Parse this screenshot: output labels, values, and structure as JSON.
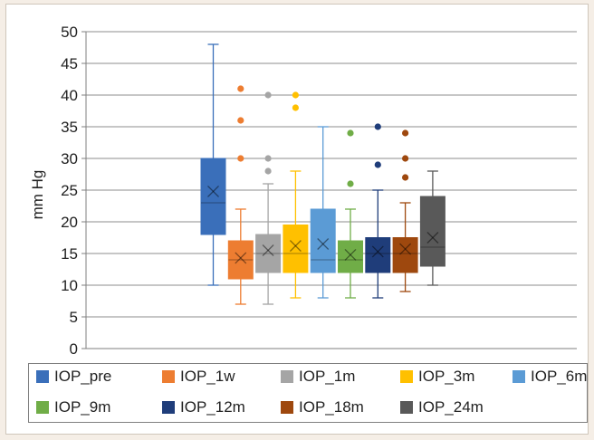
{
  "chart_data": {
    "type": "box",
    "title": "",
    "xlabel": "",
    "ylabel": "mm Hg",
    "ylim": [
      0,
      50
    ],
    "yticks": [
      0,
      5,
      10,
      15,
      20,
      25,
      30,
      35,
      40,
      45,
      50
    ],
    "grid": "horizontal",
    "legend_position": "bottom",
    "series": [
      {
        "name": "IOP_pre",
        "color": "#3a6fba",
        "min": 10,
        "q1": 18,
        "median": 23,
        "q3": 30,
        "max": 48,
        "mean": 24.8,
        "outliers": []
      },
      {
        "name": "IOP_1w",
        "color": "#ed7d31",
        "min": 7,
        "q1": 11,
        "median": 14,
        "q3": 17,
        "max": 22,
        "mean": 14.3,
        "outliers": [
          30,
          36,
          41
        ]
      },
      {
        "name": "IOP_1m",
        "color": "#a5a5a5",
        "min": 7,
        "q1": 12,
        "median": 15,
        "q3": 18,
        "max": 26,
        "mean": 15.5,
        "outliers": [
          28,
          30,
          40
        ]
      },
      {
        "name": "IOP_3m",
        "color": "#ffc000",
        "min": 8,
        "q1": 12,
        "median": 15,
        "q3": 19.5,
        "max": 28,
        "mean": 16.2,
        "outliers": [
          38,
          40
        ]
      },
      {
        "name": "IOP_6m",
        "color": "#5b9bd5",
        "min": 8,
        "q1": 12,
        "median": 14,
        "q3": 22,
        "max": 35,
        "mean": 16.5,
        "outliers": []
      },
      {
        "name": "IOP_9m",
        "color": "#70ad47",
        "min": 8,
        "q1": 12,
        "median": 14,
        "q3": 17,
        "max": 22,
        "mean": 14.8,
        "outliers": [
          26,
          34
        ]
      },
      {
        "name": "IOP_12m",
        "color": "#1f3d7a",
        "min": 8,
        "q1": 12,
        "median": 15,
        "q3": 17.5,
        "max": 25,
        "mean": 15.3,
        "outliers": [
          29,
          35
        ]
      },
      {
        "name": "IOP_18m",
        "color": "#9e480e",
        "min": 9,
        "q1": 12,
        "median": 15,
        "q3": 17.5,
        "max": 23,
        "mean": 15.7,
        "outliers": [
          27,
          30,
          34
        ]
      },
      {
        "name": "IOP_24m",
        "color": "#595959",
        "min": 10,
        "q1": 13,
        "median": 16,
        "q3": 24,
        "max": 28,
        "mean": 17.5,
        "outliers": []
      }
    ]
  }
}
